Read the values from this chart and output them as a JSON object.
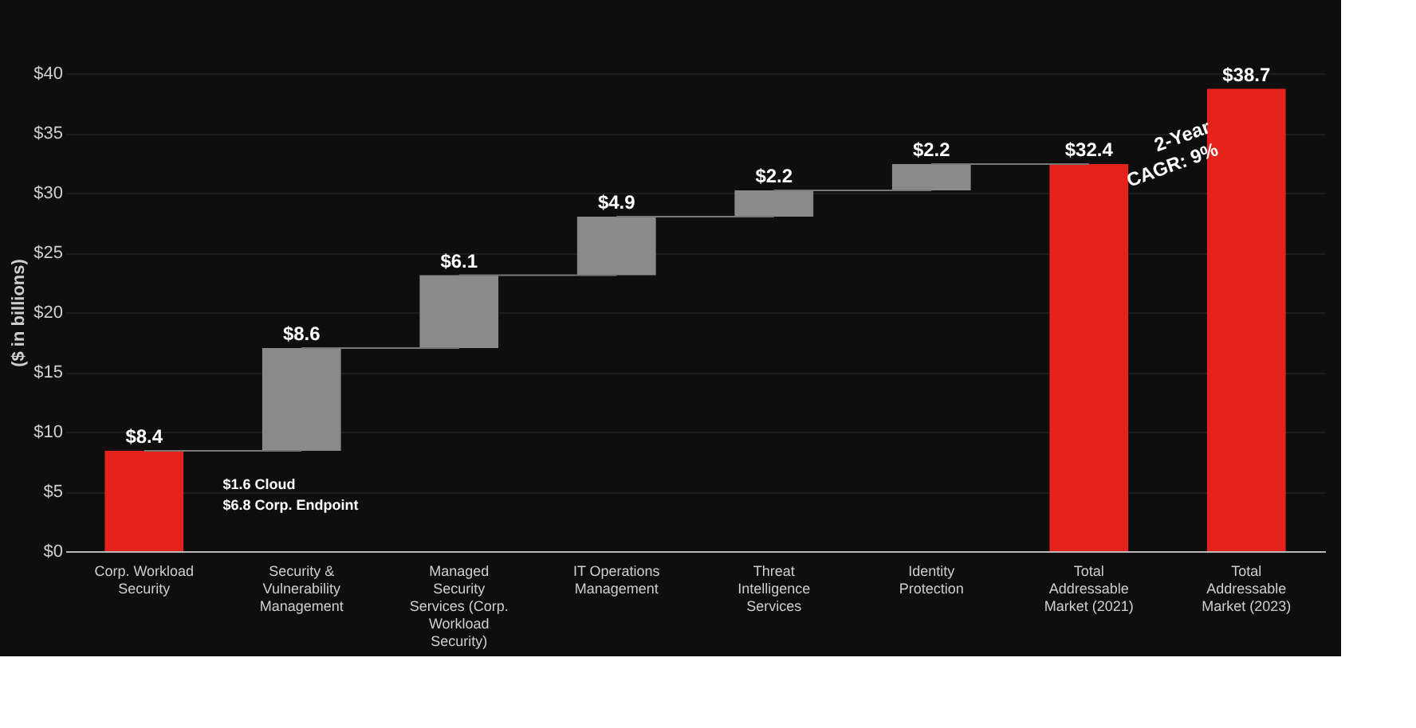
{
  "chart_data": {
    "type": "bar",
    "ylabel": "($ in billions)",
    "categories": [
      "Corp. Workload Security",
      "Security & Vulnerability Management",
      "Managed Security Services (Corp. Workload Security)",
      "IT Operations Management",
      "Threat Intelligence Services",
      "Identity Protection",
      "Total Addressable Market (2021)",
      "Total Addressable Market (2023)"
    ],
    "values": [
      8.4,
      8.6,
      6.1,
      4.9,
      2.2,
      2.2,
      32.4,
      38.7
    ],
    "base": [
      0,
      8.4,
      17.0,
      23.1,
      28.0,
      30.2,
      0,
      0
    ],
    "colors": [
      "#e3231b",
      "#8a8a8a",
      "#8a8a8a",
      "#8a8a8a",
      "#8a8a8a",
      "#8a8a8a",
      "#e3231b",
      "#e3231b"
    ],
    "value_labels": [
      "$8.4",
      "$8.6",
      "$6.1",
      "$4.9",
      "$2.2",
      "$2.2",
      "$32.4",
      "$38.7"
    ],
    "ylim": [
      0,
      40
    ],
    "yticks": [
      {
        "value": 0,
        "label": "$0"
      },
      {
        "value": 5,
        "label": "$5"
      },
      {
        "value": 10,
        "label": "$10"
      },
      {
        "value": 15,
        "label": "$15"
      },
      {
        "value": 20,
        "label": "$20"
      },
      {
        "value": 25,
        "label": "$25"
      },
      {
        "value": 30,
        "label": "$30"
      },
      {
        "value": 35,
        "label": "$35"
      },
      {
        "value": 40,
        "label": "$40"
      }
    ],
    "grid": "y",
    "annotations": [
      "$1.6 Cloud\n$6.8 Corp. Endpoint",
      {
        "text": "2-Year\nCAGR: 9%",
        "x": "Total Addressable Market (2023)",
        "y": 38.7
      }
    ]
  }
}
